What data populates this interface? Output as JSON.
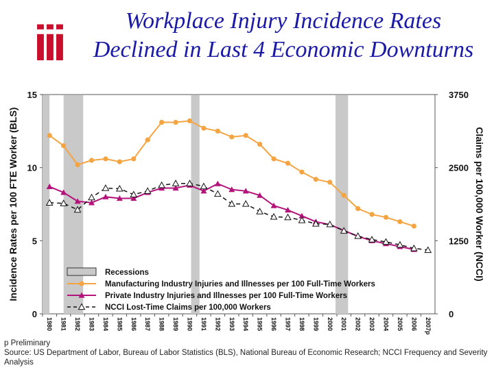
{
  "header": {
    "title_line1": "Workplace Injury Incidence Rates",
    "title_line2": "Declined in Last 4 Economic Downturns",
    "logo_text": "iii"
  },
  "footer": {
    "note": "p Preliminary",
    "source": "Source: US Department of Labor, Bureau of Labor Statistics (BLS), National Bureau of Economic Research; NCCI Frequency and Severity Analysis"
  },
  "chart_data": {
    "type": "line",
    "categories": [
      "1980",
      "1981",
      "1982",
      "1983",
      "1984",
      "1985",
      "1986",
      "1987",
      "1988",
      "1989",
      "1990",
      "1991",
      "1992",
      "1993",
      "1994",
      "1995",
      "1996",
      "1997",
      "1998",
      "1999",
      "2000",
      "2001",
      "2002",
      "2003",
      "2004",
      "2005",
      "2006",
      "2007p"
    ],
    "ylabel_left": "Incidence Rates per 100 FTE Worker (BLS)",
    "ylabel_right": "Claims per 100,000 Worker (NCCI)",
    "ylim_left": [
      0,
      15
    ],
    "ylim_right": [
      0,
      3750
    ],
    "yticks_left": [
      "0",
      "5",
      "10",
      "15"
    ],
    "yticks_right": [
      "0",
      "1250",
      "2500",
      "3750"
    ],
    "recessions": [
      [
        0,
        0.5
      ],
      [
        1.5,
        2.9
      ],
      [
        10.6,
        11.2
      ],
      [
        20.9,
        21.8
      ]
    ],
    "legend": {
      "placement": "bottom-center",
      "recession_label": "Recessions"
    },
    "series": [
      {
        "name": "Manufacturing Industry Injuries and Illnesses per 100 Full-Time Workers",
        "axis": "left",
        "color": "#f5a442",
        "marker": "circle",
        "values": [
          12.2,
          11.5,
          10.2,
          10.5,
          10.6,
          10.4,
          10.6,
          11.9,
          13.1,
          13.1,
          13.2,
          12.7,
          12.5,
          12.1,
          12.2,
          11.6,
          10.6,
          10.3,
          9.7,
          9.2,
          9.0,
          8.1,
          7.2,
          6.8,
          6.6,
          6.3,
          6.0,
          null
        ]
      },
      {
        "name": "Private Industry Injuries and Illnesses per 100 Full-Time Workers",
        "axis": "left",
        "color": "#b3137a",
        "marker": "triangle",
        "values": [
          8.7,
          8.3,
          7.7,
          7.6,
          8.0,
          7.9,
          7.9,
          8.3,
          8.6,
          8.6,
          8.8,
          8.4,
          8.9,
          8.5,
          8.4,
          8.1,
          7.4,
          7.1,
          6.7,
          6.3,
          6.1,
          5.7,
          5.3,
          5.0,
          4.8,
          4.6,
          4.4,
          null
        ]
      },
      {
        "name": "NCCI Lost-Time Claims per 100,000 Workers",
        "axis": "right",
        "color": "#111111",
        "marker": "open-triangle",
        "values": [
          1900,
          1890,
          1780,
          1990,
          2150,
          2140,
          2040,
          2100,
          2200,
          2230,
          2230,
          2180,
          2050,
          1880,
          1880,
          1750,
          1660,
          1650,
          1600,
          1540,
          1530,
          1420,
          1330,
          1270,
          1230,
          1180,
          1120,
          1090
        ]
      }
    ]
  }
}
